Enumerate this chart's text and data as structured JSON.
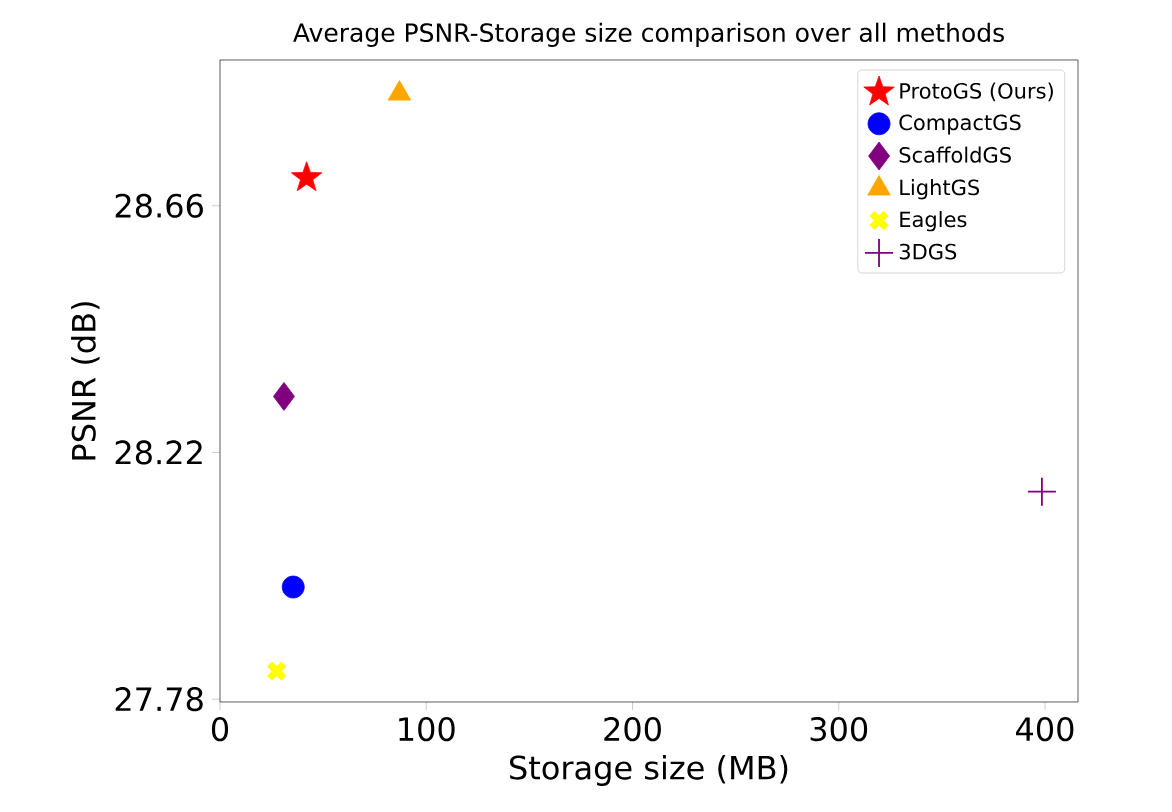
{
  "chart_data": {
    "type": "scatter",
    "title": "Average PSNR-Storage size comparison over all methods",
    "xlabel": "Storage size (MB)",
    "ylabel": "PSNR (dB)",
    "xlim": [
      0,
      416
    ],
    "ylim": [
      27.775,
      28.92
    ],
    "xticks": [
      0,
      100,
      200,
      300,
      400
    ],
    "yticks": [
      27.78,
      28.22,
      28.66
    ],
    "grid": false,
    "legend": "top right",
    "series": [
      {
        "name": "ProtoGS (Ours)",
        "color": "#ff0000",
        "marker": "star",
        "x": [
          42
        ],
        "values": [
          28.71
        ]
      },
      {
        "name": "CompactGS",
        "color": "#0000ff",
        "marker": "circle",
        "x": [
          35.5
        ],
        "values": [
          27.98
        ]
      },
      {
        "name": "ScaffoldGS",
        "color": "#800080",
        "marker": "diamond",
        "x": [
          31
        ],
        "values": [
          28.32
        ]
      },
      {
        "name": "LightGS",
        "color": "#ffa500",
        "marker": "triangle",
        "x": [
          87
        ],
        "values": [
          28.86
        ]
      },
      {
        "name": "Eagles",
        "color": "#ffff00",
        "marker": "cross",
        "x": [
          27.5
        ],
        "values": [
          27.83
        ]
      },
      {
        "name": "3DGS",
        "color": "#800080",
        "marker": "plus",
        "x": [
          398.5
        ],
        "values": [
          28.15
        ]
      }
    ]
  }
}
